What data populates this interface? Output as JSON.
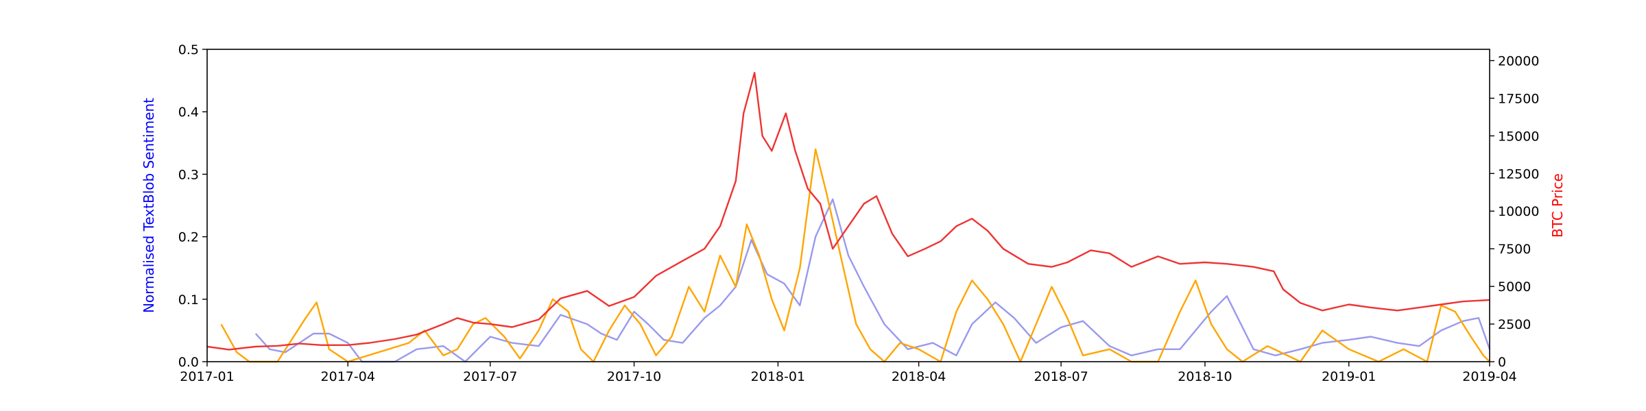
{
  "chart_data": {
    "type": "line",
    "title": "",
    "xlabel": "",
    "ylabel": "Normalised TextBlob Sentiment",
    "ylabel_color": "#0000ff",
    "y2label": "BTC Price",
    "y2label_color": "#ff0000",
    "xlim": [
      "2017-01-01",
      "2019-04-01"
    ],
    "ylim": [
      0,
      0.5
    ],
    "y2lim": [
      0,
      20750
    ],
    "xticks": [
      "2017-01",
      "2017-04",
      "2017-07",
      "2017-10",
      "2018-01",
      "2018-04",
      "2018-07",
      "2018-10",
      "2019-01",
      "2019-04"
    ],
    "yticks": [
      "0.0",
      "0.1",
      "0.2",
      "0.3",
      "0.4",
      "0.5"
    ],
    "y2ticks": [
      "0",
      "2500",
      "5000",
      "7500",
      "10000",
      "12500",
      "15000",
      "17500",
      "20000"
    ],
    "grid": false,
    "legend": "none",
    "series": [
      {
        "color": "#9999ee",
        "axis": "left",
        "x": [
          "2017-02-01",
          "2017-02-10",
          "2017-02-20",
          "2017-03-01",
          "2017-03-10",
          "2017-03-20",
          "2017-04-01",
          "2017-04-10",
          "2017-04-20",
          "2017-05-01",
          "2017-05-15",
          "2017-06-01",
          "2017-06-15",
          "2017-07-01",
          "2017-07-15",
          "2017-08-01",
          "2017-08-15",
          "2017-09-01",
          "2017-09-10",
          "2017-09-20",
          "2017-10-01",
          "2017-10-10",
          "2017-10-20",
          "2017-11-01",
          "2017-11-15",
          "2017-11-25",
          "2017-12-05",
          "2017-12-15",
          "2017-12-25",
          "2018-01-05",
          "2018-01-15",
          "2018-01-25",
          "2018-02-05",
          "2018-02-15",
          "2018-02-25",
          "2018-03-10",
          "2018-03-25",
          "2018-04-10",
          "2018-04-25",
          "2018-05-05",
          "2018-05-20",
          "2018-06-01",
          "2018-06-15",
          "2018-07-01",
          "2018-07-15",
          "2018-08-01",
          "2018-08-15",
          "2018-09-01",
          "2018-09-15",
          "2018-09-25",
          "2018-10-05",
          "2018-10-15",
          "2018-11-01",
          "2018-11-15",
          "2018-12-01",
          "2018-12-15",
          "2019-01-01",
          "2019-01-15",
          "2019-02-01",
          "2019-02-15",
          "2019-03-01",
          "2019-03-15",
          "2019-03-25",
          "2019-04-01"
        ],
        "y": [
          0.045,
          0.02,
          0.015,
          0.03,
          0.045,
          0.045,
          0.03,
          0.0,
          0.0,
          0.0,
          0.02,
          0.025,
          0.0,
          0.04,
          0.03,
          0.025,
          0.075,
          0.06,
          0.045,
          0.035,
          0.08,
          0.06,
          0.035,
          0.03,
          0.07,
          0.09,
          0.12,
          0.195,
          0.14,
          0.125,
          0.09,
          0.2,
          0.26,
          0.17,
          0.12,
          0.06,
          0.02,
          0.03,
          0.01,
          0.06,
          0.095,
          0.07,
          0.03,
          0.055,
          0.065,
          0.025,
          0.01,
          0.02,
          0.02,
          0.05,
          0.08,
          0.105,
          0.02,
          0.01,
          0.02,
          0.03,
          0.035,
          0.04,
          0.03,
          0.025,
          0.05,
          0.065,
          0.07,
          0.02
        ]
      },
      {
        "color": "#ffa500",
        "axis": "left",
        "x": [
          "2017-01-10",
          "2017-01-20",
          "2017-01-28",
          "2017-02-15",
          "2017-03-05",
          "2017-03-12",
          "2017-03-20",
          "2017-04-01",
          "2017-05-10",
          "2017-05-20",
          "2017-06-01",
          "2017-06-10",
          "2017-06-20",
          "2017-06-28",
          "2017-07-10",
          "2017-07-20",
          "2017-08-01",
          "2017-08-10",
          "2017-08-20",
          "2017-08-28",
          "2017-09-05",
          "2017-09-15",
          "2017-09-25",
          "2017-10-05",
          "2017-10-15",
          "2017-10-25",
          "2017-11-05",
          "2017-11-15",
          "2017-11-25",
          "2017-12-05",
          "2017-12-12",
          "2017-12-20",
          "2017-12-28",
          "2018-01-05",
          "2018-01-15",
          "2018-01-25",
          "2018-02-01",
          "2018-02-10",
          "2018-02-20",
          "2018-03-01",
          "2018-03-10",
          "2018-03-20",
          "2018-04-01",
          "2018-04-15",
          "2018-04-25",
          "2018-05-05",
          "2018-05-15",
          "2018-05-25",
          "2018-06-05",
          "2018-06-15",
          "2018-06-25",
          "2018-07-05",
          "2018-07-15",
          "2018-08-01",
          "2018-08-15",
          "2018-09-01",
          "2018-09-15",
          "2018-09-25",
          "2018-10-05",
          "2018-10-15",
          "2018-10-25",
          "2018-11-10",
          "2018-12-01",
          "2018-12-15",
          "2019-01-01",
          "2019-01-20",
          "2019-02-05",
          "2019-02-20",
          "2019-03-01",
          "2019-03-10",
          "2019-03-20",
          "2019-03-28",
          "2019-04-01"
        ],
        "y": [
          0.06,
          0.015,
          0.0,
          0.0,
          0.07,
          0.095,
          0.02,
          0.0,
          0.03,
          0.05,
          0.01,
          0.02,
          0.06,
          0.07,
          0.04,
          0.005,
          0.05,
          0.1,
          0.08,
          0.02,
          0.0,
          0.05,
          0.09,
          0.06,
          0.01,
          0.04,
          0.12,
          0.08,
          0.17,
          0.12,
          0.22,
          0.17,
          0.1,
          0.05,
          0.15,
          0.34,
          0.27,
          0.17,
          0.06,
          0.02,
          0.0,
          0.03,
          0.02,
          0.0,
          0.08,
          0.13,
          0.1,
          0.06,
          0.0,
          0.06,
          0.12,
          0.07,
          0.01,
          0.02,
          0.0,
          0.0,
          0.08,
          0.13,
          0.06,
          0.02,
          0.0,
          0.025,
          0.0,
          0.05,
          0.02,
          0.0,
          0.02,
          0.0,
          0.09,
          0.08,
          0.04,
          0.01,
          0.0
        ]
      },
      {
        "color": "#ee3333",
        "axis": "right",
        "x": [
          "2017-01-01",
          "2017-01-15",
          "2017-02-01",
          "2017-02-15",
          "2017-03-01",
          "2017-03-15",
          "2017-04-01",
          "2017-04-15",
          "2017-05-01",
          "2017-05-15",
          "2017-06-01",
          "2017-06-10",
          "2017-06-20",
          "2017-07-01",
          "2017-07-15",
          "2017-08-01",
          "2017-08-15",
          "2017-09-01",
          "2017-09-15",
          "2017-10-01",
          "2017-10-15",
          "2017-11-01",
          "2017-11-15",
          "2017-11-25",
          "2017-12-05",
          "2017-12-10",
          "2017-12-17",
          "2017-12-22",
          "2017-12-28",
          "2018-01-06",
          "2018-01-12",
          "2018-01-20",
          "2018-01-28",
          "2018-02-05",
          "2018-02-15",
          "2018-02-25",
          "2018-03-05",
          "2018-03-15",
          "2018-03-25",
          "2018-04-05",
          "2018-04-15",
          "2018-04-25",
          "2018-05-05",
          "2018-05-15",
          "2018-05-25",
          "2018-06-10",
          "2018-06-25",
          "2018-07-05",
          "2018-07-20",
          "2018-08-01",
          "2018-08-15",
          "2018-09-01",
          "2018-09-15",
          "2018-10-01",
          "2018-10-15",
          "2018-11-01",
          "2018-11-14",
          "2018-11-20",
          "2018-12-01",
          "2018-12-15",
          "2019-01-01",
          "2019-01-15",
          "2019-02-01",
          "2019-02-15",
          "2019-03-01",
          "2019-03-15",
          "2019-04-01"
        ],
        "y": [
          1000,
          800,
          1000,
          1050,
          1200,
          1100,
          1100,
          1250,
          1500,
          1800,
          2500,
          2900,
          2600,
          2500,
          2300,
          2800,
          4200,
          4700,
          3700,
          4300,
          5700,
          6700,
          7500,
          9000,
          12000,
          16500,
          19200,
          15000,
          14000,
          16500,
          14000,
          11500,
          10500,
          7500,
          9000,
          10500,
          11000,
          8500,
          7000,
          7500,
          8000,
          9000,
          9500,
          8700,
          7500,
          6500,
          6300,
          6600,
          7400,
          7200,
          6300,
          7000,
          6500,
          6600,
          6500,
          6300,
          6000,
          4800,
          3900,
          3400,
          3800,
          3600,
          3400,
          3600,
          3800,
          4000,
          4100
        ]
      }
    ]
  }
}
